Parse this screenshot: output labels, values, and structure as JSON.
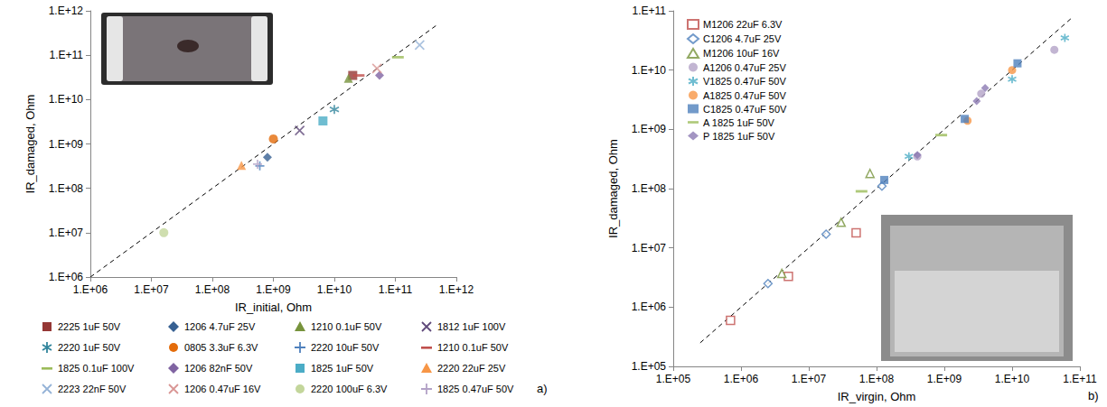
{
  "chart_data": [
    {
      "type": "scatter",
      "panel": "a)",
      "x_label": "IR_initial, Ohm",
      "y_label": "IR_damaged, Ohm",
      "log": true,
      "grid": false,
      "legend": "bottom",
      "xlim": [
        1000000.0,
        1000000000000.0
      ],
      "ylim": [
        1000000.0,
        1000000000000.0
      ],
      "xticks": [
        {
          "value": 1000000.0,
          "label": "1.E+06"
        },
        {
          "value": 10000000.0,
          "label": "1.E+07"
        },
        {
          "value": 100000000.0,
          "label": "1.E+08"
        },
        {
          "value": 1000000000.0,
          "label": "1.E+09"
        },
        {
          "value": 10000000000.0,
          "label": "1.E+10"
        },
        {
          "value": 100000000000.0,
          "label": "1.E+11"
        },
        {
          "value": 1000000000000.0,
          "label": "1.E+12"
        }
      ],
      "yticks": [
        {
          "value": 1000000.0,
          "label": "1.E+06"
        },
        {
          "value": 10000000.0,
          "label": "1.E+07"
        },
        {
          "value": 100000000.0,
          "label": "1.E+08"
        },
        {
          "value": 1000000000.0,
          "label": "1.E+09"
        },
        {
          "value": 10000000000.0,
          "label": "1.E+10"
        },
        {
          "value": 100000000000.0,
          "label": "1.E+11"
        },
        {
          "value": 1000000000000.0,
          "label": "1.E+12"
        }
      ],
      "reference_line": {
        "x": [
          1000000.0,
          500000000000.0
        ],
        "y": [
          1000000.0,
          500000000000.0
        ],
        "line_style": "dashed"
      },
      "series": [
        {
          "name": "2225 1uF 50V",
          "color": "#953735",
          "marker": "square",
          "x": [
            20000000000.0
          ],
          "y": [
            35000000000.0
          ]
        },
        {
          "name": "1206 4.7uF 25V",
          "color": "#376092",
          "marker": "diamond",
          "x": [
            800000000.0
          ],
          "y": [
            500000000.0
          ]
        },
        {
          "name": "1210 0.1uF 50V",
          "color": "#77933c",
          "marker": "triangle",
          "x": [
            17000000000.0
          ],
          "y": [
            30000000000.0
          ]
        },
        {
          "name": "1812 1uF 100V",
          "color": "#604a7b",
          "marker": "x",
          "x": [
            2700000000.0
          ],
          "y": [
            2000000000.0
          ]
        },
        {
          "name": "2220 1uF 50V",
          "color": "#31859c",
          "marker": "asterisk",
          "x": [
            10000000000.0
          ],
          "y": [
            6000000000.0
          ]
        },
        {
          "name": "0805 3.3uF 6.3V",
          "color": "#e46c0a",
          "marker": "circle",
          "x": [
            1000000000.0
          ],
          "y": [
            1300000000.0
          ]
        },
        {
          "name": "2220 10uF 50V",
          "color": "#4f81bd",
          "marker": "plus",
          "x": [
            600000000.0
          ],
          "y": [
            320000000.0
          ]
        },
        {
          "name": "1210 0.1uF 50V",
          "color": "#c0504d",
          "marker": "dash",
          "x": [
            25000000000.0
          ],
          "y": [
            35000000000.0
          ]
        },
        {
          "name": "1825 0.1uF 100V",
          "color": "#9bbb59",
          "marker": "dash",
          "x": [
            110000000000.0
          ],
          "y": [
            90000000000.0
          ]
        },
        {
          "name": "1206 82nF 50V",
          "color": "#8064a2",
          "marker": "diamond",
          "x": [
            55000000000.0
          ],
          "y": [
            35000000000.0
          ]
        },
        {
          "name": "1825 1uF 50V",
          "color": "#4bacc6",
          "marker": "square",
          "x": [
            6500000000.0
          ],
          "y": [
            3300000000.0
          ]
        },
        {
          "name": "2220 22uF 25V",
          "color": "#f79646",
          "marker": "triangle",
          "x": [
            300000000.0
          ],
          "y": [
            330000000.0
          ]
        },
        {
          "name": "2223 22nF 50V",
          "color": "#95b3d7",
          "marker": "x",
          "x": [
            250000000000.0
          ],
          "y": [
            170000000000.0
          ]
        },
        {
          "name": "1206 0.47uF 16V",
          "color": "#d99694",
          "marker": "x",
          "x": [
            50000000000.0
          ],
          "y": [
            50000000000.0
          ]
        },
        {
          "name": "2220 100uF 6.3V",
          "color": "#c3d69b",
          "marker": "circle",
          "x": [
            16000000.0
          ],
          "y": [
            10000000.0
          ]
        },
        {
          "name": "1825 0.47uF 50V",
          "color": "#b3a2c7",
          "marker": "plus",
          "x": [
            550000000.0
          ],
          "y": [
            350000000.0
          ]
        }
      ]
    },
    {
      "type": "scatter",
      "panel": "b)",
      "x_label": "IR_virgin, Ohm",
      "y_label": "IR_damaged, Ohm",
      "log": true,
      "grid": false,
      "legend": "upper left",
      "xlim": [
        100000.0,
        100000000000.0
      ],
      "ylim": [
        100000.0,
        100000000000.0
      ],
      "xticks": [
        {
          "value": 100000.0,
          "label": "1.E+05"
        },
        {
          "value": 1000000.0,
          "label": "1.E+06"
        },
        {
          "value": 10000000.0,
          "label": "1.E+07"
        },
        {
          "value": 100000000.0,
          "label": "1.E+08"
        },
        {
          "value": 1000000000.0,
          "label": "1.E+09"
        },
        {
          "value": 10000000000.0,
          "label": "1.E+10"
        },
        {
          "value": 100000000000.0,
          "label": "1.E+11"
        }
      ],
      "yticks": [
        {
          "value": 100000.0,
          "label": "1.E+05"
        },
        {
          "value": 1000000.0,
          "label": "1.E+06"
        },
        {
          "value": 10000000.0,
          "label": "1.E+07"
        },
        {
          "value": 100000000.0,
          "label": "1.E+08"
        },
        {
          "value": 1000000000.0,
          "label": "1.E+09"
        },
        {
          "value": 10000000000.0,
          "label": "1.E+10"
        },
        {
          "value": 100000000000.0,
          "label": "1.E+11"
        }
      ],
      "reference_line": {
        "x": [
          250000.0,
          80000000000.0
        ],
        "y": [
          250000.0,
          80000000000.0
        ],
        "line_style": "dashed"
      },
      "series": [
        {
          "name": "M1206 22uF 6.3V",
          "color": "#c0504d",
          "marker": "hollow-square",
          "x": [
            700000.0,
            5000000.0,
            50000000.0
          ],
          "y": [
            600000.0,
            3300000.0,
            18000000.0
          ]
        },
        {
          "name": "C1206 4.7uF 25V",
          "color": "#4f81bd",
          "marker": "hollow-diamond",
          "x": [
            2500000.0,
            18000000.0,
            120000000.0
          ],
          "y": [
            2500000.0,
            17000000.0,
            110000000.0
          ]
        },
        {
          "name": "M1206 10uF 16V",
          "color": "#77933c",
          "marker": "hollow-triangle",
          "x": [
            4000000.0,
            30000000.0,
            80000000.0
          ],
          "y": [
            3700000.0,
            27000000.0,
            180000000.0
          ]
        },
        {
          "name": "A1206 0.47uF 25V",
          "color": "#b3a2c7",
          "marker": "circle",
          "x": [
            400000000.0,
            3500000000.0,
            42000000000.0
          ],
          "y": [
            350000000.0,
            4000000000.0,
            22000000000.0
          ]
        },
        {
          "name": "V1825 0.47uF 50V",
          "color": "#4bacc6",
          "marker": "asterisk",
          "x": [
            300000000.0,
            10000000000.0,
            60000000000.0
          ],
          "y": [
            350000000.0,
            7000000000.0,
            35000000000.0
          ]
        },
        {
          "name": "A1825 0.47uF 50V",
          "color": "#f79646",
          "marker": "circle",
          "x": [
            2200000000.0,
            10000000000.0
          ],
          "y": [
            1400000000.0,
            10000000000.0
          ]
        },
        {
          "name": "C1825 0.47uF 50V",
          "color": "#4f81bd",
          "marker": "square",
          "x": [
            130000000.0,
            2000000000.0,
            12000000000.0
          ],
          "y": [
            140000000.0,
            1500000000.0,
            13000000000.0
          ]
        },
        {
          "name": "A 1825 1uF 50V",
          "color": "#9bbb59",
          "marker": "dash",
          "x": [
            60000000.0,
            900000000.0
          ],
          "y": [
            90000000.0,
            800000000.0
          ]
        },
        {
          "name": "P 1825 1uF 50V",
          "color": "#8c7ab3",
          "marker": "diamond",
          "x": [
            400000000.0,
            3000000000.0,
            4000000000.0
          ],
          "y": [
            370000000.0,
            3000000000.0,
            5000000000.0
          ]
        }
      ]
    }
  ]
}
